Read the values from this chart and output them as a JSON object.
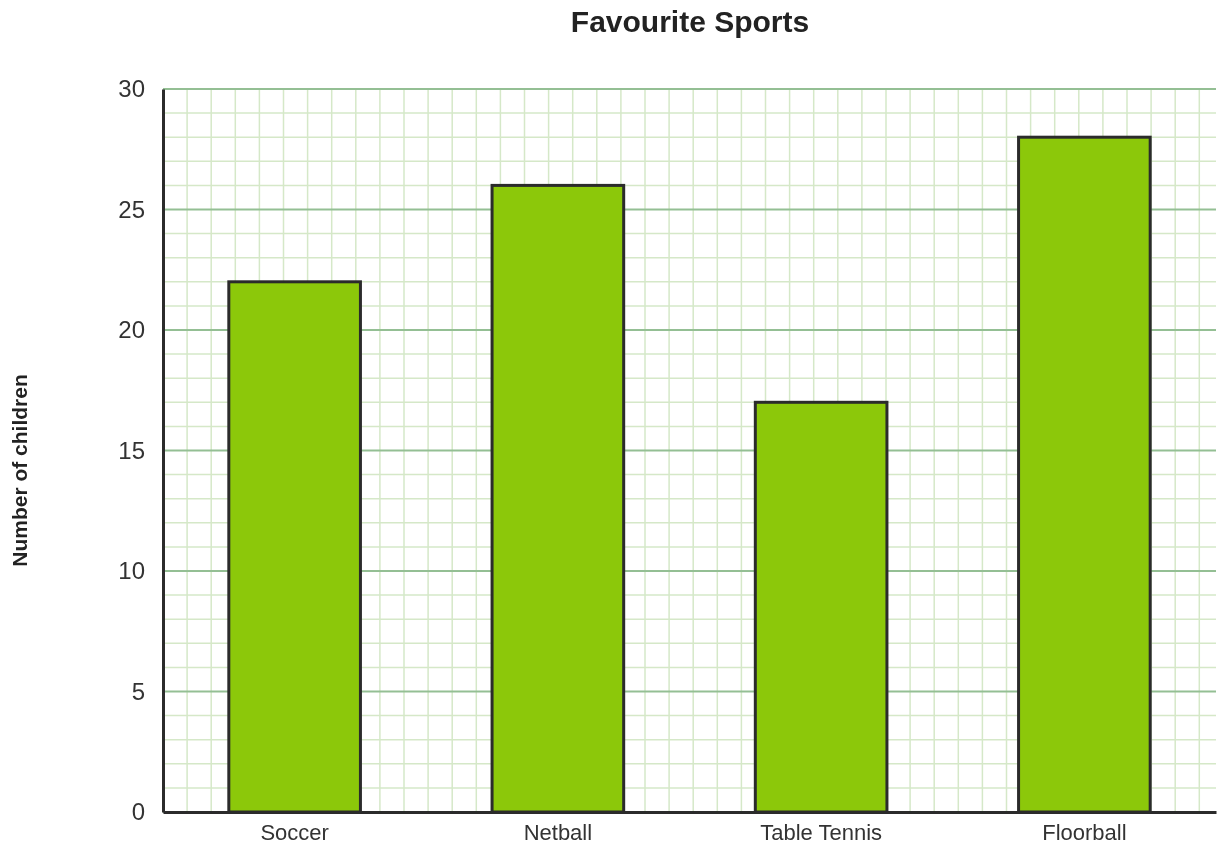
{
  "chart_data": {
    "type": "bar",
    "title": "Favourite Sports",
    "ylabel": "Number of children",
    "categories": [
      "Soccer",
      "Netball",
      "Table Tennis",
      "Floorball"
    ],
    "values": [
      22,
      26,
      17,
      28
    ],
    "color": "#8cc80a",
    "ylim": [
      0,
      30
    ],
    "yticks": [
      0,
      5,
      10,
      15,
      20,
      25,
      30
    ],
    "grid": true
  }
}
